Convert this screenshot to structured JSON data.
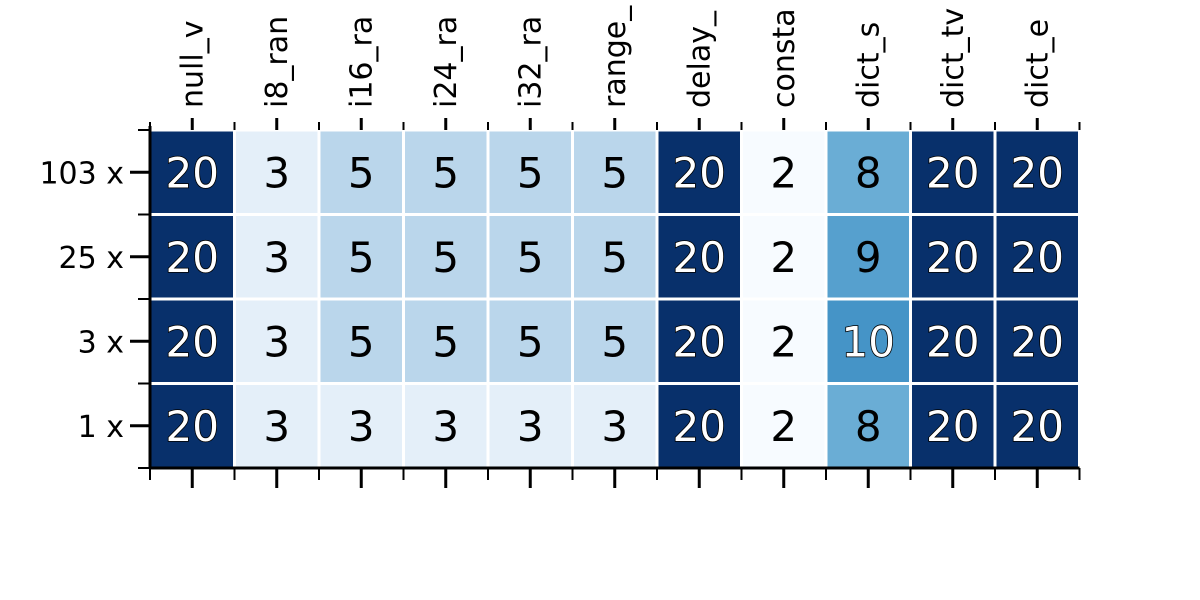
{
  "chart_data": {
    "type": "heatmap",
    "title": "",
    "xlabel": "",
    "ylabel": "",
    "columns": [
      "null_v",
      "i8_ran",
      "i16_ra",
      "i24_ra",
      "i32_ra",
      "range_",
      "delay_",
      "consta",
      "dict_s",
      "dict_tv",
      "dict_e"
    ],
    "rows": [
      "103 x",
      "25 x",
      "3 x",
      "1 x"
    ],
    "values": [
      [
        20,
        3,
        5,
        5,
        5,
        5,
        20,
        2,
        8,
        20,
        20
      ],
      [
        20,
        3,
        5,
        5,
        5,
        5,
        20,
        2,
        9,
        20,
        20
      ],
      [
        20,
        3,
        5,
        5,
        5,
        5,
        20,
        2,
        10,
        20,
        20
      ],
      [
        20,
        3,
        3,
        3,
        3,
        3,
        20,
        2,
        8,
        20,
        20
      ]
    ],
    "colormap": "Blues",
    "value_range": [
      2,
      20
    ],
    "grid": false,
    "legend": "none"
  }
}
